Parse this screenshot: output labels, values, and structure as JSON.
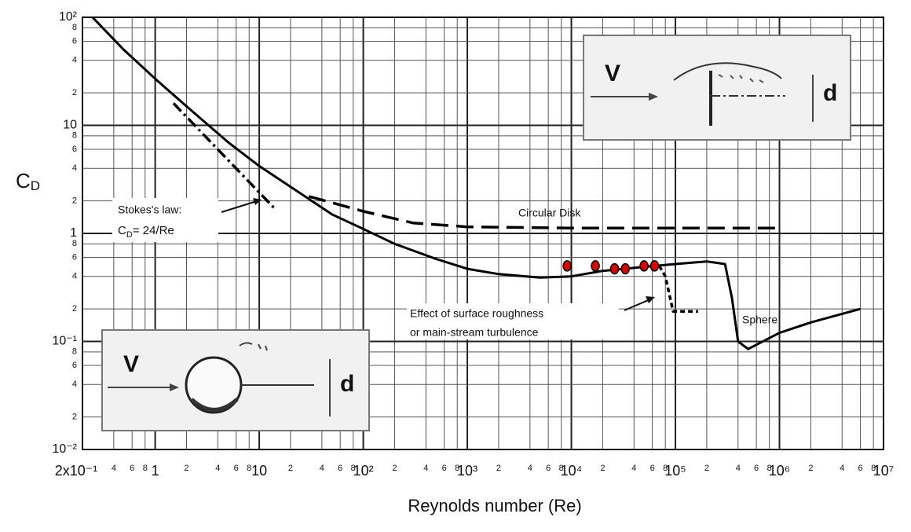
{
  "chart_data": {
    "type": "line",
    "log_x": true,
    "log_y": true,
    "grid": true,
    "xlabel": "Reynolds number (Re)",
    "ylabel": {
      "main": "C",
      "sub": "D"
    },
    "xlim": [
      0.2,
      10000000
    ],
    "ylim": [
      0.01,
      100
    ],
    "xticks": [
      {
        "value": 0.2,
        "label": "2x10⁻¹"
      },
      {
        "value": 0.4,
        "label": "4"
      },
      {
        "value": 0.6,
        "label": "6"
      },
      {
        "value": 0.8,
        "label": "8"
      },
      1,
      2,
      4,
      6,
      8,
      10,
      {
        "value": 20,
        "label": "2"
      },
      {
        "value": 40,
        "label": "4"
      },
      {
        "value": 60,
        "label": "6"
      },
      {
        "value": 80,
        "label": "8"
      },
      {
        "value": 100,
        "label": "10²"
      },
      {
        "value": 200,
        "label": "2"
      },
      {
        "value": 400,
        "label": "4"
      },
      {
        "value": 600,
        "label": "6"
      },
      {
        "value": 800,
        "label": "8"
      },
      {
        "value": 1000,
        "label": "10³"
      },
      {
        "value": 2000,
        "label": "2"
      },
      {
        "value": 4000,
        "label": "4"
      },
      {
        "value": 6000,
        "label": "6"
      },
      {
        "value": 8000,
        "label": "8"
      },
      {
        "value": 10000,
        "label": "10⁴"
      },
      {
        "value": 20000,
        "label": "2"
      },
      {
        "value": 40000,
        "label": "4"
      },
      {
        "value": 60000,
        "label": "6"
      },
      {
        "value": 80000,
        "label": "8"
      },
      {
        "value": 100000,
        "label": "10⁵"
      },
      {
        "value": 200000,
        "label": "2"
      },
      {
        "value": 400000,
        "label": "4"
      },
      {
        "value": 600000,
        "label": "6"
      },
      {
        "value": 800000,
        "label": "8"
      },
      {
        "value": 1000000,
        "label": "10⁶"
      },
      {
        "value": 2000000,
        "label": "2"
      },
      {
        "value": 4000000,
        "label": "4"
      },
      {
        "value": 6000000,
        "label": "6"
      },
      {
        "value": 8000000,
        "label": "8"
      },
      {
        "value": 10000000,
        "label": "10⁷"
      }
    ],
    "yticks": [
      {
        "value": 0.01,
        "label": "10⁻²"
      },
      {
        "value": 0.02,
        "label": "2"
      },
      {
        "value": 0.04,
        "label": "4"
      },
      {
        "value": 0.06,
        "label": "6"
      },
      {
        "value": 0.08,
        "label": "8"
      },
      {
        "value": 0.1,
        "label": "10⁻¹"
      },
      {
        "value": 0.2,
        "label": "2"
      },
      {
        "value": 0.4,
        "label": "4"
      },
      {
        "value": 0.6,
        "label": "6"
      },
      {
        "value": 0.8,
        "label": "8"
      },
      1,
      2,
      4,
      6,
      8,
      10,
      {
        "value": 20,
        "label": "2"
      },
      {
        "value": 40,
        "label": "4"
      },
      {
        "value": 60,
        "label": "6"
      },
      {
        "value": 80,
        "label": "8"
      },
      {
        "value": 100,
        "label": "10²"
      }
    ],
    "series": [
      {
        "color": "#000000",
        "style": "solid",
        "x": [
          0.25,
          0.5,
          1,
          2,
          5,
          10,
          20,
          50,
          100,
          200,
          500,
          1000,
          2000,
          5000,
          10000,
          20000,
          50000,
          100000,
          200000,
          300000,
          350000,
          400000,
          500000,
          1000000,
          2000000,
          6000000
        ],
        "values": [
          100,
          50,
          27,
          15,
          7,
          4.2,
          2.7,
          1.5,
          1.1,
          0.8,
          0.58,
          0.47,
          0.42,
          0.39,
          0.4,
          0.45,
          0.49,
          0.52,
          0.55,
          0.52,
          0.25,
          0.1,
          0.085,
          0.12,
          0.15,
          0.2
        ]
      },
      {
        "color": "#000000",
        "style": "dash",
        "x": [
          30,
          100,
          300,
          1000,
          10000,
          100000,
          1000000
        ],
        "values": [
          2.2,
          1.6,
          1.25,
          1.15,
          1.12,
          1.12,
          1.12
        ]
      },
      {
        "color": "#000000",
        "style": "dashdot",
        "x": [
          1.5,
          14
        ],
        "values": [
          16,
          1.71
        ]
      },
      {
        "color": "#000000",
        "style": "dot",
        "x": [
          70000,
          80000,
          95000,
          165000
        ],
        "values": [
          0.5,
          0.4,
          0.19,
          0.19
        ]
      },
      {
        "color": "#e00000",
        "style": "points",
        "x": [
          9100,
          17000,
          26000,
          33000,
          50000,
          63000
        ],
        "values": [
          0.5,
          0.5,
          0.47,
          0.47,
          0.5,
          0.5
        ]
      }
    ],
    "annotations": {
      "stokes": {
        "line1": "Stokes's law:",
        "c": "C",
        "sub": "D",
        "rest": "= 24/Re"
      },
      "disk": "Circular Disk",
      "roughness": [
        "Effect of surface roughness",
        "or main-stream turbulence"
      ],
      "sphere": "Sphere",
      "inset_top": {
        "v": "V",
        "d": "d"
      },
      "inset_bottom": {
        "v": "V",
        "d": "d"
      }
    }
  }
}
